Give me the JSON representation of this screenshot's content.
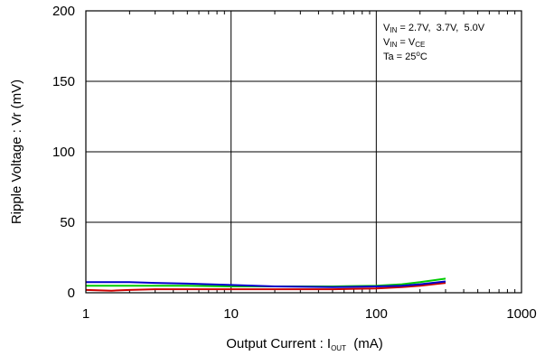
{
  "chart_data": {
    "type": "line",
    "x_scale": "log",
    "xlim": [
      1,
      1000
    ],
    "ylim": [
      0,
      200
    ],
    "x_ticks": [
      "1",
      "10",
      "100",
      "1000"
    ],
    "y_ticks": [
      "0",
      "50",
      "100",
      "150",
      "200"
    ],
    "xlabel": {
      "prefix": "Output Current : I",
      "sub": "OUT",
      "suffix": "  (mA)"
    },
    "ylabel": "Ripple Voltage : Vr (mV)",
    "grid": true,
    "annotations": [
      {
        "main": "V",
        "sub": "IN",
        "rest": " = 2.7V,  3.7V,  5.0V"
      },
      {
        "main": "V",
        "sub": "IN",
        "rest": " = V",
        "sub2": "CE"
      },
      {
        "main": "Ta = 25",
        "sup": "o",
        "rest": "C"
      }
    ],
    "colors": {
      "red": "#cc0000",
      "green": "#00cc00",
      "blue": "#0000cc",
      "grid": "#000000"
    },
    "series": [
      {
        "color": "#cc0000",
        "x": [
          1,
          1.5,
          2,
          3,
          5,
          10,
          20,
          50,
          100,
          150,
          200,
          300
        ],
        "y": [
          2,
          1.5,
          2,
          2.5,
          2.5,
          2.5,
          2.5,
          2.5,
          3,
          4,
          5,
          7
        ]
      },
      {
        "color": "#00cc00",
        "x": [
          1,
          1.5,
          2,
          3,
          5,
          10,
          20,
          50,
          100,
          150,
          200,
          300
        ],
        "y": [
          5,
          5,
          5,
          5,
          5,
          4.5,
          4.5,
          4.5,
          5,
          6,
          7.5,
          10
        ]
      },
      {
        "color": "#0000cc",
        "x": [
          1,
          1.5,
          2,
          3,
          5,
          10,
          20,
          50,
          100,
          150,
          200,
          300
        ],
        "y": [
          7.5,
          7.5,
          7.5,
          7,
          6.5,
          5.5,
          4.5,
          4,
          4.5,
          5,
          6,
          8
        ]
      }
    ]
  }
}
